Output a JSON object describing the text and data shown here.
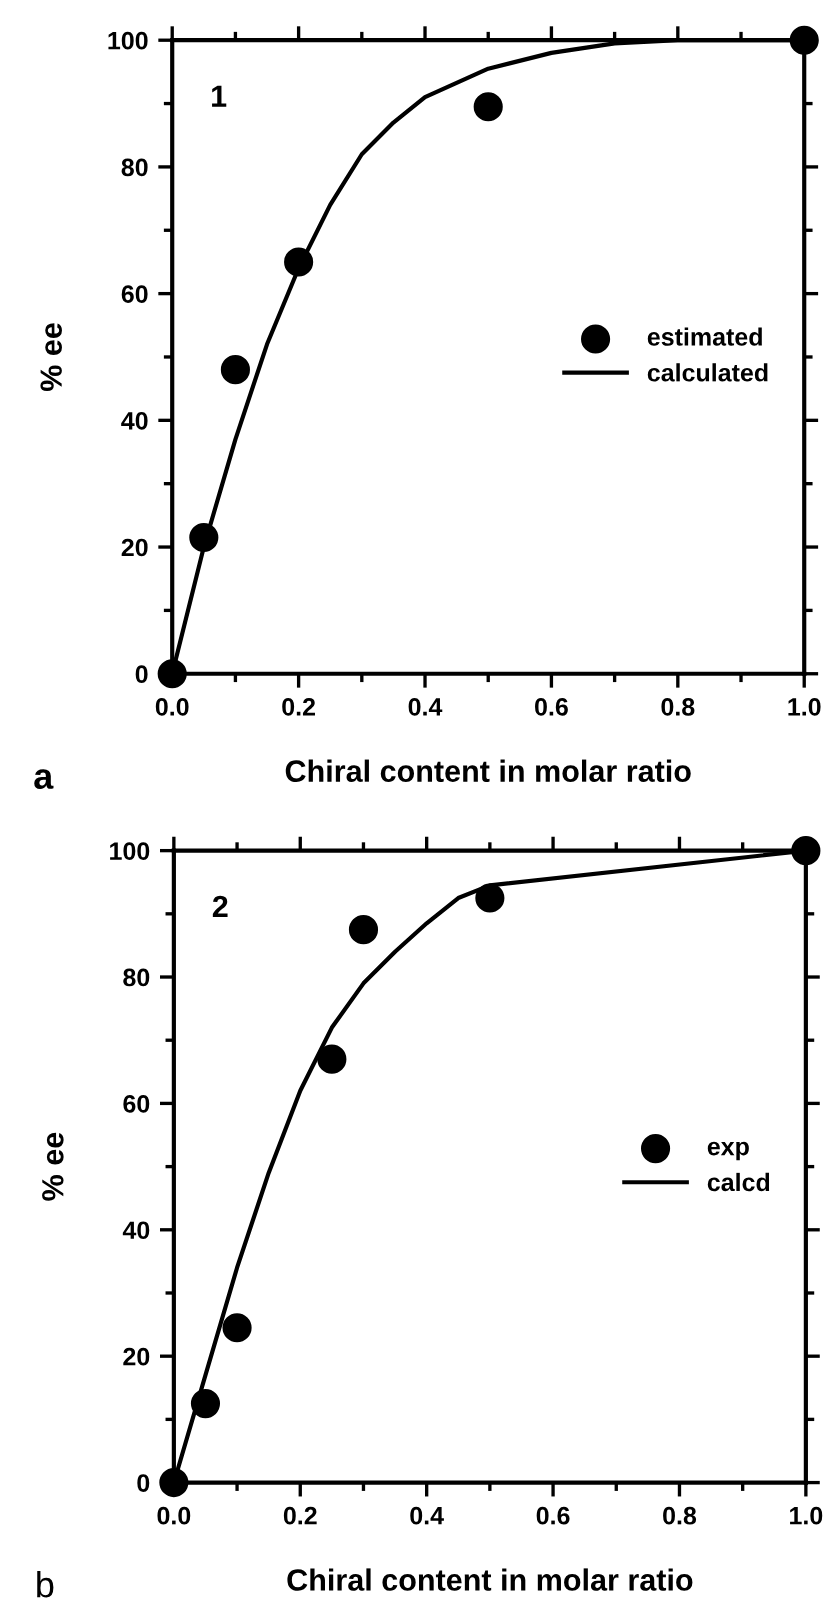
{
  "chart_data": [
    {
      "type": "scatter",
      "xlabel": "Chiral content in molar ratio",
      "ylabel": "% ee",
      "annotations": [
        "1",
        "a"
      ],
      "xlim": [
        0,
        1
      ],
      "ylim": [
        0,
        100
      ],
      "xticks": [
        {
          "value": 0,
          "label": "0.0"
        },
        {
          "value": 0.2,
          "label": "0.2"
        },
        {
          "value": 0.4,
          "label": "0.4"
        },
        {
          "value": 0.6,
          "label": "0.6"
        },
        {
          "value": 0.8,
          "label": "0.8"
        },
        {
          "value": 1,
          "label": "1.0"
        }
      ],
      "yticks": [
        0,
        20,
        40,
        60,
        80,
        100
      ],
      "legend": "right",
      "series": [
        {
          "name": "estimated",
          "marker": "circle",
          "color": "#000000",
          "x": [
            0,
            0.05,
            0.1,
            0.2,
            0.5,
            1
          ],
          "values": [
            0,
            21.5,
            48,
            65,
            89.5,
            100
          ]
        },
        {
          "name": "calculated",
          "type": "line",
          "marker": "none",
          "color": "#000000",
          "x": [
            0,
            0.05,
            0.1,
            0.15,
            0.2,
            0.25,
            0.3,
            0.35,
            0.4,
            0.5,
            0.6,
            0.7,
            0.8,
            1
          ],
          "values": [
            0,
            20,
            37,
            52,
            64,
            74,
            82,
            87,
            91,
            95.5,
            98,
            99.5,
            100,
            100
          ]
        }
      ]
    },
    {
      "type": "scatter",
      "xlabel": "Chiral content in molar ratio",
      "ylabel": "% ee",
      "annotations": [
        "2",
        "b"
      ],
      "xlim": [
        0,
        1
      ],
      "ylim": [
        0,
        100
      ],
      "xticks": [
        {
          "value": 0,
          "label": "0.0"
        },
        {
          "value": 0.2,
          "label": "0.2"
        },
        {
          "value": 0.4,
          "label": "0.4"
        },
        {
          "value": 0.6,
          "label": "0.6"
        },
        {
          "value": 0.8,
          "label": "0.8"
        },
        {
          "value": 1,
          "label": "1.0"
        }
      ],
      "yticks": [
        0,
        20,
        40,
        60,
        80,
        100
      ],
      "legend": "right",
      "series": [
        {
          "name": "exp",
          "marker": "circle",
          "color": "#000000",
          "x": [
            0,
            0.05,
            0.1,
            0.25,
            0.3,
            0.5,
            1
          ],
          "values": [
            0,
            12.5,
            24.5,
            67,
            87.5,
            92.5,
            100
          ]
        },
        {
          "name": "calcd",
          "type": "line",
          "marker": "none",
          "color": "#000000",
          "x": [
            0,
            0.05,
            0.1,
            0.15,
            0.2,
            0.25,
            0.3,
            0.35,
            0.4,
            0.45,
            0.5,
            1
          ],
          "values": [
            0,
            17,
            34,
            49,
            62,
            72,
            79,
            84,
            88.5,
            92.5,
            94.5,
            100
          ]
        }
      ]
    }
  ]
}
